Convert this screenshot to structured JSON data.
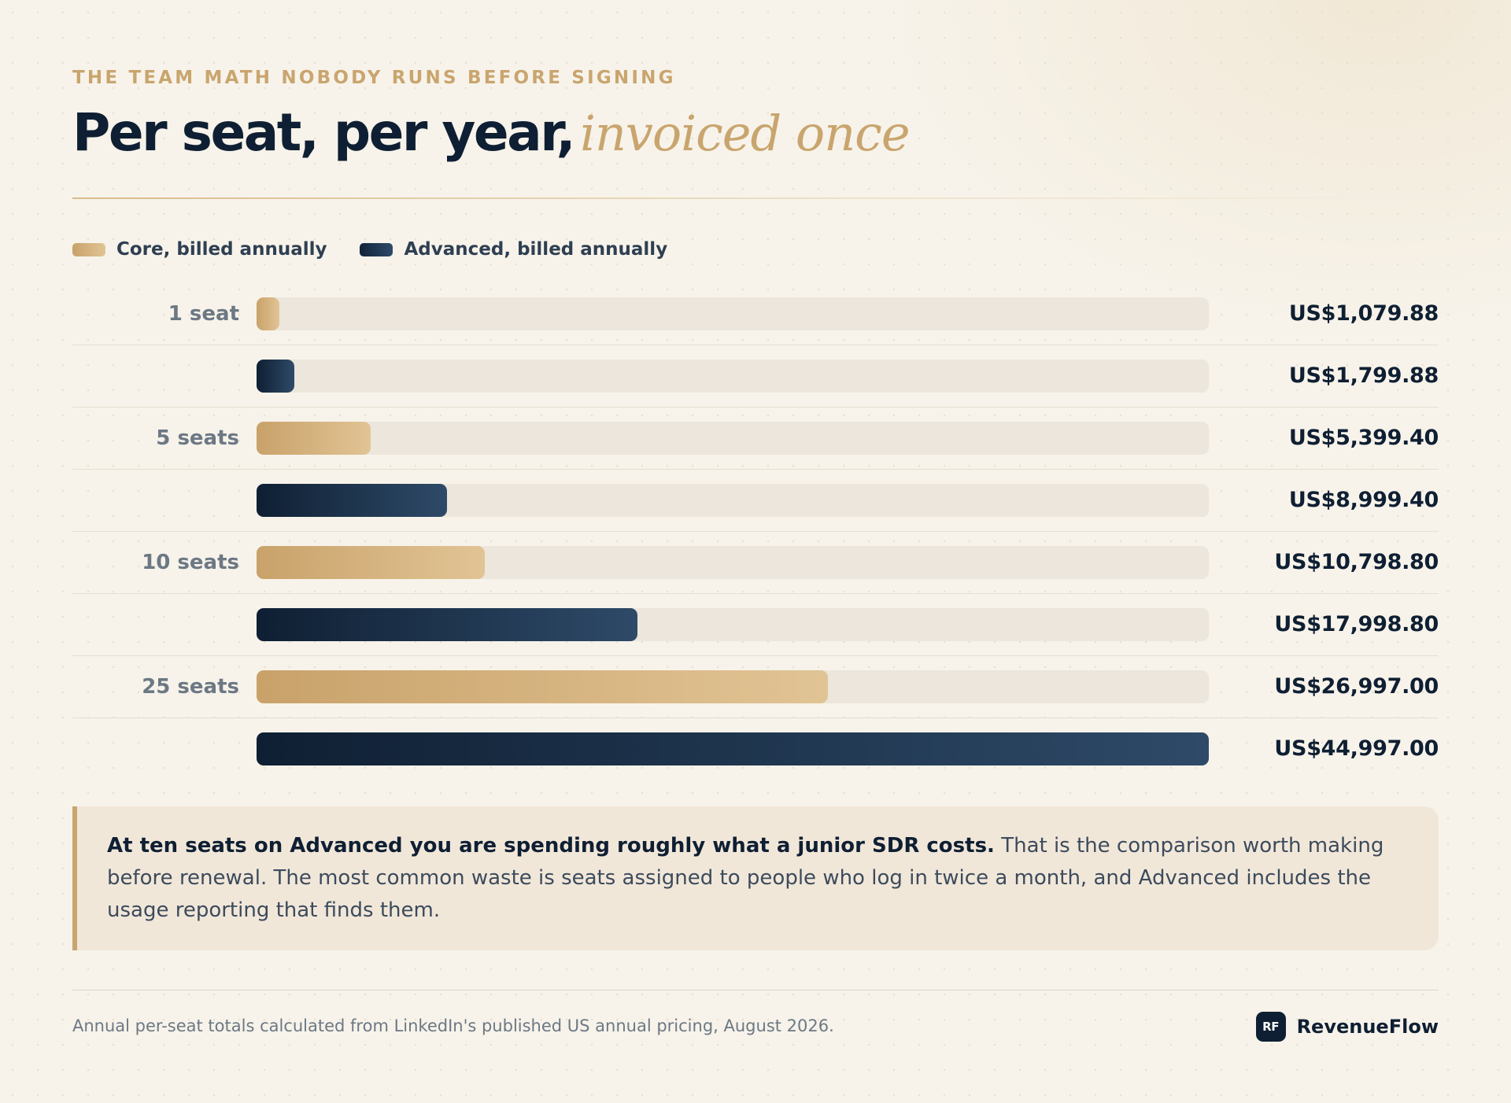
{
  "header": {
    "eyebrow": "THE TEAM MATH NOBODY RUNS BEFORE SIGNING",
    "title_main": "Per seat, per year,",
    "title_accent": "invoiced once"
  },
  "colors": {
    "core_start": "#c9a26a",
    "core_end": "#e1c495",
    "advanced_start": "#0f1f33",
    "advanced_end": "#2e4a68",
    "accent": "#c9a56e",
    "track": "#ece6dc"
  },
  "chart_data": {
    "type": "bar",
    "orientation": "horizontal",
    "categories": [
      "1 seat",
      "5 seats",
      "10 seats",
      "25 seats"
    ],
    "series": [
      {
        "name": "Core, billed annually",
        "values": [
          1079.88,
          5399.4,
          10798.8,
          26997.0
        ],
        "labels": [
          "US$1,079.88",
          "US$5,399.40",
          "US$10,798.80",
          "US$26,997.00"
        ]
      },
      {
        "name": "Advanced, billed annually",
        "values": [
          1799.88,
          8999.4,
          17998.8,
          44997.0
        ],
        "labels": [
          "US$1,799.88",
          "US$8,999.40",
          "US$17,998.80",
          "US$44,997.00"
        ]
      }
    ],
    "xlim": [
      0,
      44997.0
    ],
    "legend_position": "top-left",
    "grid": false
  },
  "note": {
    "bold": "At ten seats on Advanced you are spending roughly what a junior SDR costs.",
    "text": "That is the comparison worth making before renewal. The most common waste is seats assigned to people who log in twice a month, and Advanced includes the usage reporting that finds them."
  },
  "footer": {
    "footnote": "Annual per-seat totals calculated from LinkedIn's published US annual pricing, August 2026.",
    "brand_mark": "RF",
    "brand_name": "RevenueFlow"
  }
}
